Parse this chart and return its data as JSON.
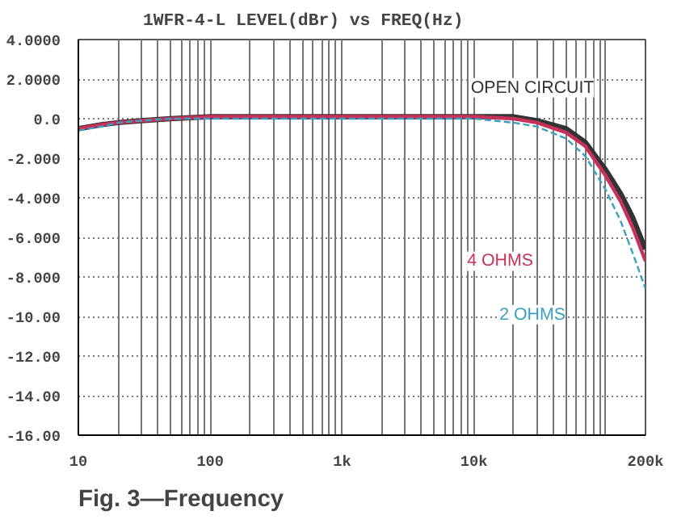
{
  "chart_data": {
    "type": "line",
    "title": "1WFR-4-L LEVEL(dBr) vs FREQ(Hz)",
    "annotations": [
      "Fig. 3—Frequency"
    ],
    "log": "x",
    "grid": true,
    "legend": false,
    "xlim": [
      10,
      200000
    ],
    "ylim": [
      -16,
      4
    ],
    "xticks": [
      10,
      {
        "value": 20,
        "label": null
      },
      {
        "value": 30,
        "label": null
      },
      {
        "value": 40,
        "label": null
      },
      {
        "value": 50,
        "label": null
      },
      {
        "value": 60,
        "label": null
      },
      {
        "value": 70,
        "label": null
      },
      {
        "value": 80,
        "label": null
      },
      {
        "value": 90,
        "label": null
      },
      100,
      {
        "value": 200,
        "label": null
      },
      {
        "value": 300,
        "label": null
      },
      {
        "value": 400,
        "label": null
      },
      {
        "value": 500,
        "label": null
      },
      {
        "value": 600,
        "label": null
      },
      {
        "value": 700,
        "label": null
      },
      {
        "value": 800,
        "label": null
      },
      {
        "value": 900,
        "label": null
      },
      {
        "value": 1000,
        "label": "1k"
      },
      {
        "value": 2000,
        "label": null
      },
      {
        "value": 3000,
        "label": null
      },
      {
        "value": 4000,
        "label": null
      },
      {
        "value": 5000,
        "label": null
      },
      {
        "value": 6000,
        "label": null
      },
      {
        "value": 7000,
        "label": null
      },
      {
        "value": 8000,
        "label": null
      },
      {
        "value": 9000,
        "label": null
      },
      {
        "value": 10000,
        "label": "10k"
      },
      {
        "value": 20000,
        "label": null
      },
      {
        "value": 30000,
        "label": null
      },
      {
        "value": 40000,
        "label": null
      },
      {
        "value": 50000,
        "label": null
      },
      {
        "value": 60000,
        "label": null
      },
      {
        "value": 70000,
        "label": null
      },
      {
        "value": 80000,
        "label": null
      },
      {
        "value": 90000,
        "label": null
      },
      {
        "value": 100000,
        "label": null
      },
      {
        "value": 200000,
        "label": "200k"
      }
    ],
    "yticks": [
      {
        "value": 4,
        "label": "4.0000"
      },
      {
        "value": 2,
        "label": "2.0000"
      },
      {
        "value": 0,
        "label": "0.0"
      },
      {
        "value": -2,
        "label": "-2.000"
      },
      {
        "value": -4,
        "label": "-4.000"
      },
      {
        "value": -6,
        "label": "-6.000"
      },
      {
        "value": -8,
        "label": "-8.000"
      },
      {
        "value": -10,
        "label": "-10.00"
      },
      {
        "value": -12,
        "label": "-12.00"
      },
      {
        "value": -14,
        "label": "-14.00"
      },
      {
        "value": -16,
        "label": "-16.00"
      }
    ],
    "series": [
      {
        "name": "OPEN CIRCUIT",
        "color": "#333333",
        "line_style": "solid",
        "x": [
          10,
          15,
          20,
          30,
          50,
          100,
          1000,
          5000,
          10000,
          20000,
          30000,
          50000,
          70000,
          100000,
          130000,
          160000,
          200000
        ],
        "values": [
          -0.5,
          -0.3,
          -0.2,
          -0.1,
          0.0,
          0.1,
          0.1,
          0.1,
          0.1,
          0.1,
          -0.1,
          -0.5,
          -1.2,
          -2.6,
          -3.8,
          -5.0,
          -6.6
        ]
      },
      {
        "name": "4 OHMS",
        "color": "#c8325a",
        "line_style": "solid",
        "x": [
          10,
          15,
          20,
          30,
          50,
          100,
          1000,
          5000,
          10000,
          20000,
          30000,
          50000,
          70000,
          100000,
          130000,
          160000,
          200000
        ],
        "values": [
          -0.5,
          -0.3,
          -0.2,
          -0.1,
          0.0,
          0.1,
          0.1,
          0.1,
          0.1,
          0.0,
          -0.2,
          -0.7,
          -1.4,
          -2.9,
          -4.2,
          -5.5,
          -7.2
        ]
      },
      {
        "name": "2 OHMS",
        "color": "#3aa0c0",
        "line_style": "dashed",
        "x": [
          10,
          15,
          20,
          30,
          50,
          100,
          1000,
          5000,
          10000,
          20000,
          30000,
          50000,
          70000,
          100000,
          130000,
          160000,
          200000
        ],
        "values": [
          -0.6,
          -0.4,
          -0.2,
          -0.1,
          0.0,
          0.0,
          0.0,
          0.0,
          0.0,
          -0.2,
          -0.4,
          -1.0,
          -1.9,
          -3.6,
          -5.2,
          -6.8,
          -8.6
        ]
      }
    ]
  }
}
